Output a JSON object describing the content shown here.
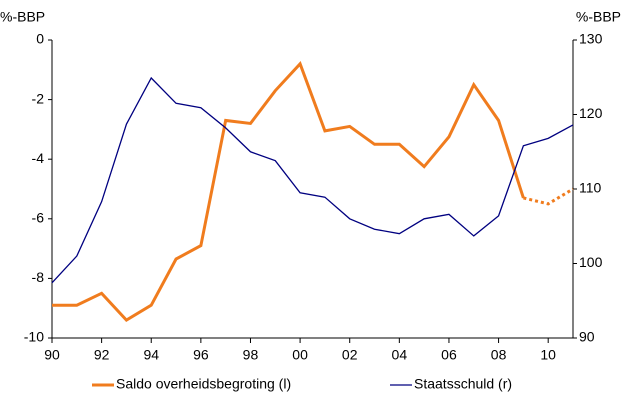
{
  "chart_data": {
    "type": "line",
    "y_axis_label": "%-BBP",
    "y2_axis_label": "%-BBP",
    "x": [
      1990,
      1991,
      1992,
      1993,
      1994,
      1995,
      1996,
      1997,
      1998,
      1999,
      2000,
      2001,
      2002,
      2003,
      2004,
      2005,
      2006,
      2007,
      2008,
      2009,
      2010,
      2011
    ],
    "xlim": [
      1990,
      2011
    ],
    "xticks": [
      {
        "value": 1990,
        "label": "90"
      },
      {
        "value": 1992,
        "label": "92"
      },
      {
        "value": 1994,
        "label": "94"
      },
      {
        "value": 1996,
        "label": "96"
      },
      {
        "value": 1998,
        "label": "98"
      },
      {
        "value": 2000,
        "label": "00"
      },
      {
        "value": 2002,
        "label": "02"
      },
      {
        "value": 2004,
        "label": "04"
      },
      {
        "value": 2006,
        "label": "06"
      },
      {
        "value": 2008,
        "label": "08"
      },
      {
        "value": 2010,
        "label": "10"
      }
    ],
    "ylim": [
      -10,
      0
    ],
    "yticks": [
      -10,
      -8,
      -6,
      -4,
      -2,
      0
    ],
    "y2lim": [
      90,
      130
    ],
    "y2ticks": [
      90,
      100,
      110,
      120,
      130
    ],
    "grid": false,
    "legend": "bottom",
    "series": [
      {
        "name": "Saldo overheidsbegroting (l)",
        "color": "#f07c1e",
        "axis": "y",
        "dotted_from": 2009,
        "values": [
          -8.9,
          -8.9,
          -8.5,
          -9.4,
          -8.9,
          -7.35,
          -6.9,
          -2.7,
          -2.8,
          -1.7,
          -0.8,
          -3.05,
          -2.9,
          -3.5,
          -3.5,
          -4.25,
          -3.25,
          -1.5,
          -2.7,
          -5.3,
          -5.5,
          -5.0
        ]
      },
      {
        "name": "Staatsschuld (r)",
        "color": "#000080",
        "axis": "y2",
        "values": [
          97.4,
          101.0,
          108.3,
          118.7,
          124.9,
          121.5,
          120.9,
          118.2,
          115.0,
          113.8,
          109.5,
          108.9,
          106.0,
          104.6,
          104.0,
          106.0,
          106.6,
          103.7,
          106.4,
          115.8,
          116.8,
          118.6
        ]
      }
    ]
  }
}
